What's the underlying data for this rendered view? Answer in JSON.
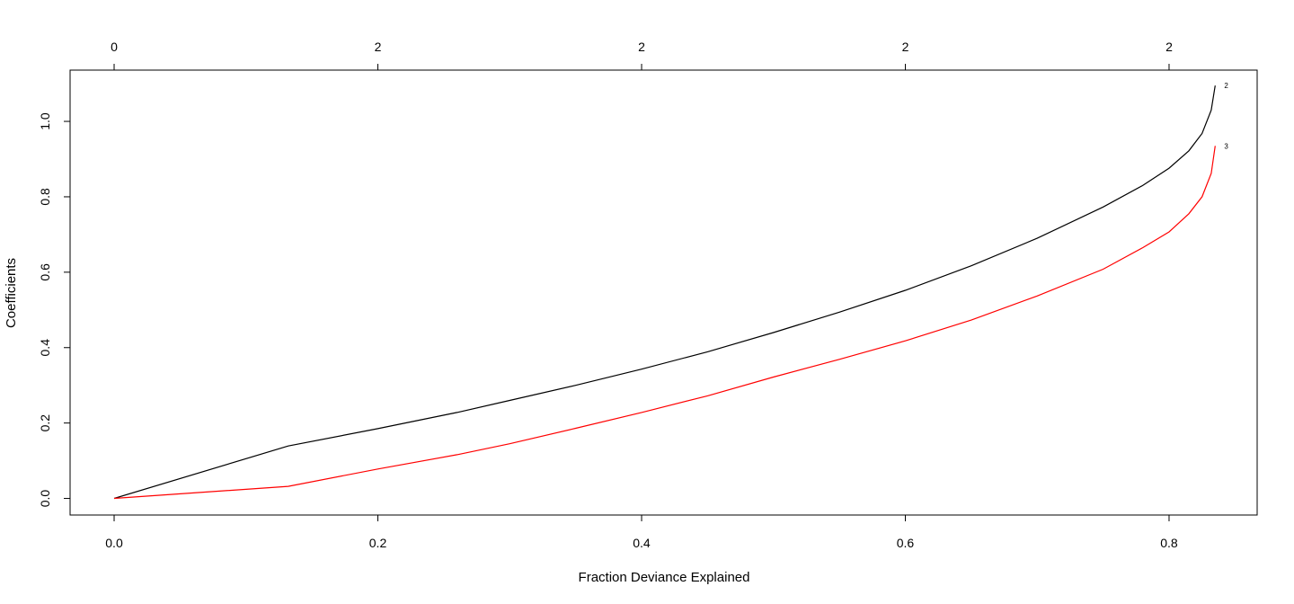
{
  "chart_data": {
    "type": "line",
    "title": "",
    "xlabel": "Fraction Deviance Explained",
    "ylabel": "Coefficients",
    "xlim": [
      -0.0334,
      0.8668
    ],
    "ylim": [
      -0.044,
      1.136
    ],
    "x_ticks": [
      "0.0",
      "0.2",
      "0.4",
      "0.6",
      "0.8"
    ],
    "y_ticks": [
      "0.0",
      "0.2",
      "0.4",
      "0.6",
      "0.8",
      "1.0"
    ],
    "top_axis_ticks": [
      {
        "x": 0.0,
        "label": "0"
      },
      {
        "x": 0.2,
        "label": "2"
      },
      {
        "x": 0.4,
        "label": "2"
      },
      {
        "x": 0.6,
        "label": "2"
      },
      {
        "x": 0.8,
        "label": "2"
      }
    ],
    "grid": false,
    "series": [
      {
        "label": "2",
        "color": "#000000",
        "points": [
          [
            0.0,
            0.0
          ],
          [
            0.132,
            0.139
          ],
          [
            0.2,
            0.185
          ],
          [
            0.26,
            0.228
          ],
          [
            0.3,
            0.26
          ],
          [
            0.35,
            0.3
          ],
          [
            0.4,
            0.343
          ],
          [
            0.45,
            0.389
          ],
          [
            0.5,
            0.44
          ],
          [
            0.55,
            0.494
          ],
          [
            0.6,
            0.552
          ],
          [
            0.65,
            0.617
          ],
          [
            0.7,
            0.69
          ],
          [
            0.75,
            0.773
          ],
          [
            0.78,
            0.83
          ],
          [
            0.8,
            0.876
          ],
          [
            0.815,
            0.922
          ],
          [
            0.825,
            0.968
          ],
          [
            0.832,
            1.03
          ],
          [
            0.835,
            1.095
          ]
        ]
      },
      {
        "label": "3",
        "color": "#ff0000",
        "points": [
          [
            0.0,
            0.0
          ],
          [
            0.132,
            0.032
          ],
          [
            0.2,
            0.078
          ],
          [
            0.26,
            0.116
          ],
          [
            0.3,
            0.145
          ],
          [
            0.35,
            0.186
          ],
          [
            0.4,
            0.228
          ],
          [
            0.45,
            0.272
          ],
          [
            0.5,
            0.322
          ],
          [
            0.55,
            0.369
          ],
          [
            0.6,
            0.418
          ],
          [
            0.65,
            0.473
          ],
          [
            0.7,
            0.537
          ],
          [
            0.75,
            0.608
          ],
          [
            0.78,
            0.665
          ],
          [
            0.8,
            0.707
          ],
          [
            0.815,
            0.755
          ],
          [
            0.825,
            0.8
          ],
          [
            0.832,
            0.862
          ],
          [
            0.835,
            0.935
          ]
        ]
      }
    ]
  }
}
